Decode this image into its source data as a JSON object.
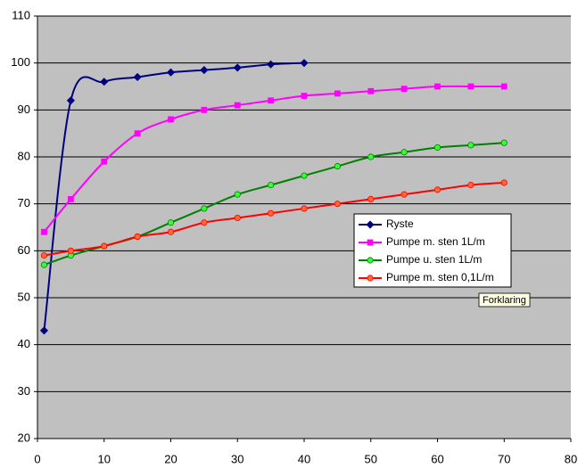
{
  "chart_data": {
    "type": "line",
    "xlim": [
      0,
      80
    ],
    "xticks": [
      0,
      10,
      20,
      30,
      40,
      50,
      60,
      70,
      80
    ],
    "ylim": [
      20,
      110
    ],
    "yticks": [
      20,
      30,
      40,
      50,
      60,
      70,
      80,
      90,
      100,
      110
    ],
    "grid": true,
    "smooth": true,
    "legend": "right",
    "tooltip": "Forklaring",
    "series": [
      {
        "name": "Ryste",
        "color": "#000080",
        "marker_color": "#000080",
        "marker": "diamond",
        "x": [
          1,
          5,
          10,
          15,
          20,
          25,
          30,
          35,
          40
        ],
        "values": [
          43,
          92,
          96,
          97,
          98,
          98.5,
          99,
          99.7,
          100
        ]
      },
      {
        "name": "Pumpe m. sten 1L/m",
        "color": "#ff00ff",
        "marker_color": "#ff00ff",
        "marker": "square",
        "x": [
          1,
          5,
          10,
          15,
          20,
          25,
          30,
          35,
          40,
          45,
          50,
          55,
          60,
          65,
          70
        ],
        "values": [
          64,
          71,
          79,
          85,
          88,
          90,
          91,
          92,
          93,
          93.5,
          94,
          94.5,
          95,
          95,
          95
        ]
      },
      {
        "name": "Pumpe u. sten 1L/m",
        "color": "#008000",
        "marker_color": "#33ff33",
        "marker": "circle",
        "x": [
          1,
          5,
          10,
          15,
          20,
          25,
          30,
          35,
          40,
          45,
          50,
          55,
          60,
          65,
          70
        ],
        "values": [
          57,
          59,
          61,
          63,
          66,
          69,
          72,
          74,
          76,
          78,
          80,
          81,
          82,
          82.5,
          83
        ]
      },
      {
        "name": "Pumpe m. sten 0,1L/m",
        "color": "#ff0000",
        "marker_color": "#ff6633",
        "marker": "circle",
        "x": [
          1,
          5,
          10,
          15,
          20,
          25,
          30,
          35,
          40,
          45,
          50,
          55,
          60,
          65,
          70
        ],
        "values": [
          59,
          60,
          61,
          63,
          64,
          66,
          67,
          68,
          69,
          70,
          71,
          72,
          73,
          74,
          74.5
        ]
      }
    ]
  }
}
